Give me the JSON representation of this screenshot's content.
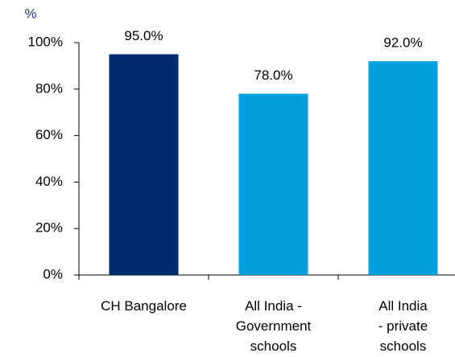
{
  "chart_data": {
    "type": "bar",
    "axis_label": "%",
    "categories": [
      "CH Bangalore",
      "All India -\nGovernment\nschools",
      "All India\n- private\nschools"
    ],
    "values": [
      95,
      78,
      92
    ],
    "value_labels": [
      "95.0%",
      "78.0%",
      "92.0%"
    ],
    "colors": [
      "#002a6e",
      "#00a0df",
      "#00a0df"
    ],
    "ylim": [
      0,
      100
    ],
    "yticks": [
      {
        "value": 0,
        "label": "0%"
      },
      {
        "value": 20,
        "label": "20%"
      },
      {
        "value": 40,
        "label": "40%"
      },
      {
        "value": 60,
        "label": "60%"
      },
      {
        "value": 80,
        "label": "80%"
      },
      {
        "value": 100,
        "label": "100%"
      }
    ]
  }
}
